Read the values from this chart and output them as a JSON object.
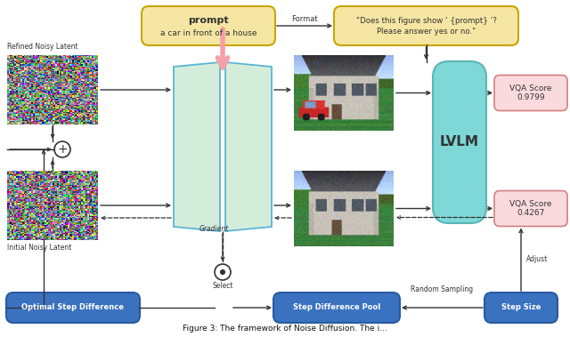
{
  "fig_width": 6.4,
  "fig_height": 3.79,
  "dpi": 100,
  "bg_color": "#ffffff",
  "prompt_bold": "prompt",
  "prompt_normal": "a car in front of a house",
  "question_text_line1": "\"Does this figure show ‘ {prompt} ’?",
  "question_text_line2": "Please answer yes or no.\"",
  "lvlm_text": "LVLM",
  "vqa_high_text": "VQA Score\n0.9799",
  "vqa_low_text": "VQA Score\n0.4267",
  "opt_step_text": "Optimal Step Difference",
  "step_pool_text": "Step Difference Pool",
  "step_size_text": "Step Size",
  "format_label": "Format",
  "gradient_label": "Gradient",
  "select_label": "Select",
  "random_sampling_label": "Random Sampling",
  "adjust_label": "Adjust",
  "refined_label": "Refined Noisy Latent",
  "initial_label": "Initial Noisy Latent",
  "caption": "Figure 3: The framework of Noise Diffusion. The i...",
  "prompt_fc": "#f5e6a3",
  "prompt_ec": "#c8a600",
  "question_fc": "#f5e6a3",
  "question_ec": "#c8a600",
  "lvlm_fc": "#7fd8d8",
  "lvlm_ec": "#5ab5b5",
  "vqa_fc": "#fadadd",
  "vqa_ec": "#d08080",
  "blue_fc": "#3a72c0",
  "blue_ec": "#2a5aa0",
  "blue_tc": "#ffffff",
  "book_fc": "#d4edda",
  "book_ec": "#5ab5d4",
  "pink_arrow": "#f4a0a8",
  "arrow_c": "#333333",
  "text_c": "#333333"
}
